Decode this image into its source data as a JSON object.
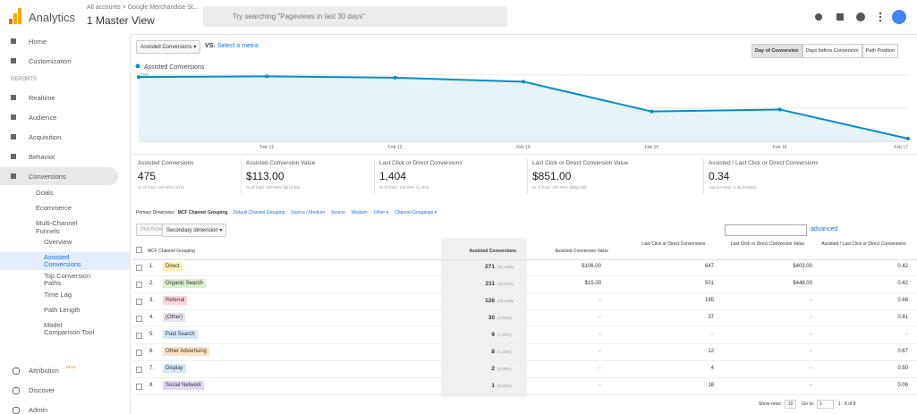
{
  "header": {
    "product": "Analytics",
    "breadcrumb": "All accounts > Google Merchandise St...",
    "view": "1 Master View",
    "search": "Try searching \"Pageviews in last 30 days\""
  },
  "sidebar": {
    "top": [
      "Home",
      "Customization"
    ],
    "section": "REPORTS",
    "reports": [
      "Realtime",
      "Audience",
      "Acquisition",
      "Behavior",
      "Conversions"
    ],
    "conversions": [
      "Goals",
      "Ecommerce",
      "Multi-Channel Funnels"
    ],
    "funnels": [
      "Overview",
      "Assisted Conversions",
      "Top Conversion Paths",
      "Time Lag",
      "Path Length",
      "Model Comparison Tool"
    ],
    "bottom": [
      "Attribution",
      "Discover",
      "Admin"
    ],
    "badge": "BETA"
  },
  "controls": {
    "metric": "Assisted Conversions",
    "vs": "VS.",
    "select": "Select a metric",
    "tabs": [
      "Day of Conversion",
      "Days before Conversion",
      "Path Position"
    ]
  },
  "chart": {
    "type": "line",
    "legend": "Assisted Conversions",
    "categories": [
      null,
      "Feb 12",
      "Feb 13",
      "Feb 14",
      "Feb 15",
      "Feb 16",
      "Feb 17"
    ],
    "values": [
      97,
      98,
      96,
      90,
      45,
      48,
      4
    ],
    "color": "#058dc7",
    "fill": "#e5f3f9",
    "ylim": [
      0,
      108
    ],
    "yticks": [
      50,
      100
    ],
    "grid": true
  },
  "summary": [
    {
      "label": "Assisted Conversions",
      "value": "475",
      "note": "% of Total: 100.00% (475)"
    },
    {
      "label": "Assisted Conversion Value",
      "value": "$113.00",
      "note": "% of Total: 100.00% ($113.00)"
    },
    {
      "label": "Last Click or Direct Conversions",
      "value": "1,404",
      "note": "% of Total: 100.00% (1,404)"
    },
    {
      "label": "Last Click or Direct Conversion Value",
      "value": "$851.00",
      "note": "% of Total: 100.00% ($851.00)"
    },
    {
      "label": "Assisted / Last Click or Direct Conversions",
      "value": "0.34",
      "note": "Avg for View: 0.34 (0.00%)"
    }
  ],
  "dimensions": {
    "label": "Primary Dimension:",
    "active": "MCF Channel Grouping",
    "options": [
      "Default Channel Grouping",
      "Source / Medium",
      "Source",
      "Medium",
      "Other ▾",
      "Channel Groupings ▾"
    ]
  },
  "tools": {
    "plot": "Plot Rows",
    "secondary": "Secondary dimension ▾",
    "advanced": "advanced"
  },
  "table": {
    "columns": [
      "MCF Channel Grouping",
      "Assisted Conversions",
      "Assisted Conversion Value",
      "Last Click or Direct Conversions",
      "Last Click or Direct Conversion Value",
      "Assisted / Last Click or Direct Conversions"
    ],
    "tag_colors": [
      "#fdf2b5",
      "#d9f0c8",
      "#fbd6dc",
      "#e8e1f0",
      "#d3e8f9",
      "#fde2c3",
      "#d3e8f9",
      "#e3d6f2"
    ],
    "rows": [
      [
        "1.",
        "Direct",
        "271",
        "(41.19%)",
        "$106.00",
        "647",
        "$403.00",
        "0.42"
      ],
      [
        "2.",
        "Organic Search",
        "211",
        "(32.07%)",
        "$15.00",
        "501",
        "$448.00",
        "0.42"
      ],
      [
        "3.",
        "Referral",
        "126",
        "(19.15%)",
        "–",
        "185",
        "–",
        "0.68"
      ],
      [
        "4.",
        "(Other)",
        "30",
        "(4.56%)",
        "–",
        "37",
        "–",
        "0.81"
      ],
      [
        "5.",
        "Paid Search",
        "9",
        "(1.37%)",
        "–",
        "–",
        "–",
        "–"
      ],
      [
        "6.",
        "Other Advertising",
        "8",
        "(1.22%)",
        "–",
        "12",
        "–",
        "0.67"
      ],
      [
        "7.",
        "Display",
        "2",
        "(0.30%)",
        "–",
        "4",
        "–",
        "0.50"
      ],
      [
        "8.",
        "Social Network",
        "1",
        "(0.15%)",
        "–",
        "18",
        "–",
        "0.06"
      ]
    ]
  },
  "pagination": {
    "show": "Show rows:",
    "rows": "10",
    "goto": "Go to:",
    "page": "1",
    "range": "1 - 8 of 8"
  }
}
